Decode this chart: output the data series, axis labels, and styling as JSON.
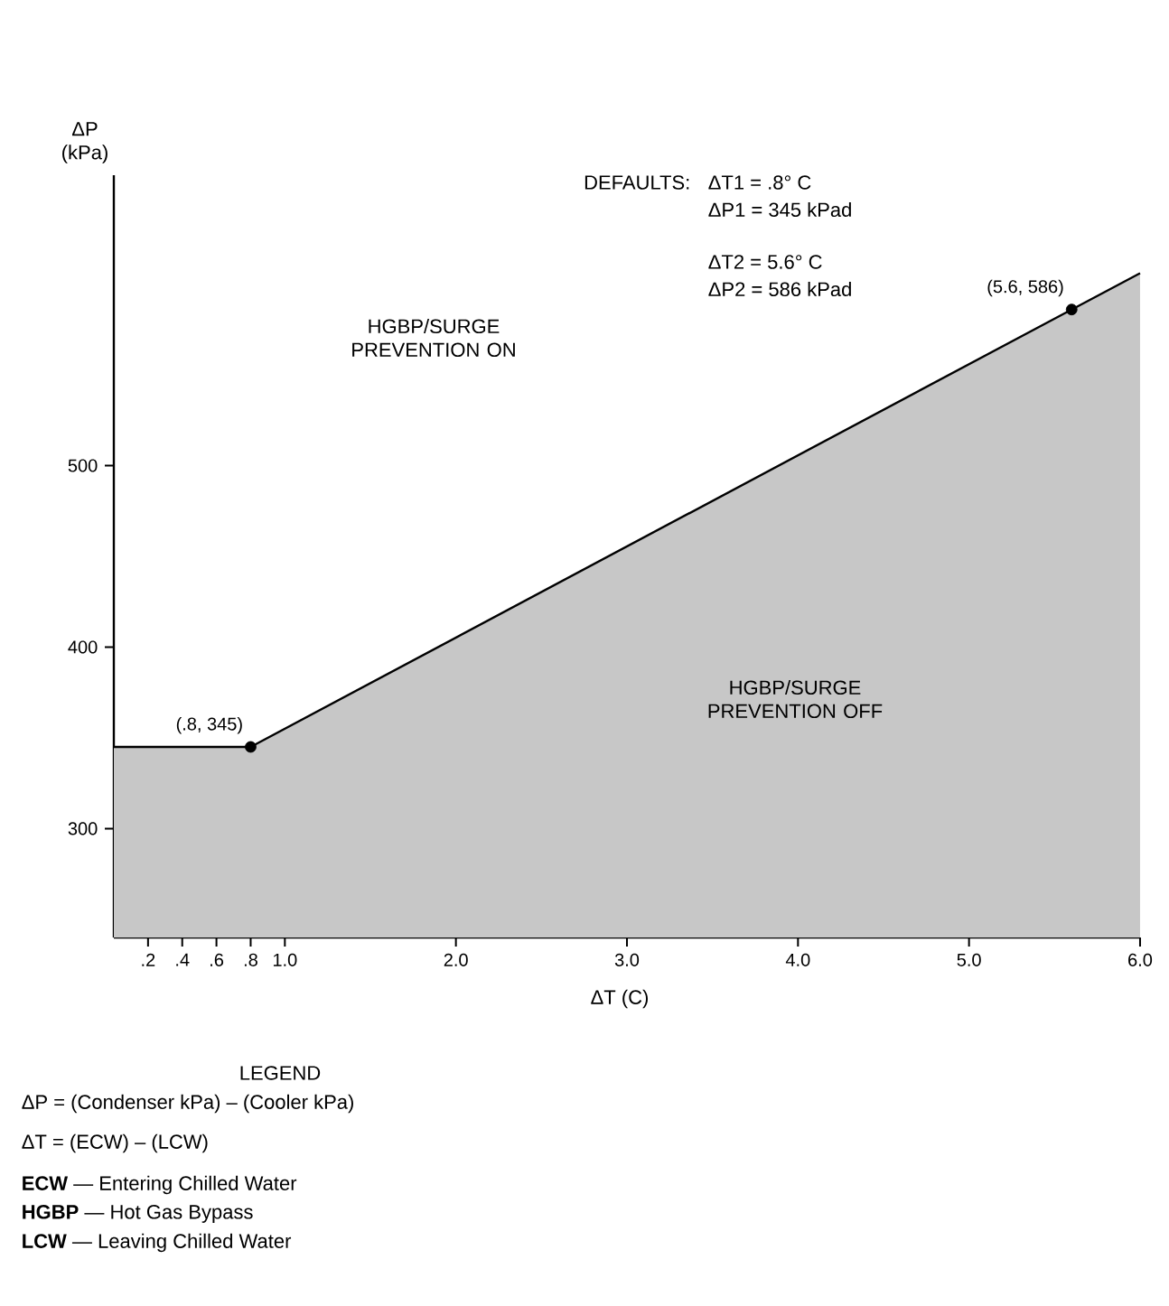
{
  "chart_data": {
    "type": "area",
    "xlabel": "ΔT (C)",
    "ylabel": "ΔP (kPa)",
    "xlim": [
      0,
      6.0
    ],
    "ylim": [
      240,
      660
    ],
    "xticks": [
      {
        "value": 0.2,
        "label": ".2"
      },
      {
        "value": 0.4,
        "label": ".4"
      },
      {
        "value": 0.6,
        "label": ".6"
      },
      {
        "value": 0.8,
        "label": ".8"
      },
      {
        "value": 1.0,
        "label": "1.0"
      },
      {
        "value": 2.0,
        "label": "2.0"
      },
      {
        "value": 3.0,
        "label": "3.0"
      },
      {
        "value": 4.0,
        "label": "4.0"
      },
      {
        "value": 5.0,
        "label": "5.0"
      },
      {
        "value": 6.0,
        "label": "6.0"
      }
    ],
    "yticks": [
      300,
      400,
      500
    ],
    "series": [
      {
        "color": "#000000",
        "x": [
          0,
          0.8,
          5.6,
          6.0
        ],
        "values": [
          345,
          345,
          586,
          606
        ]
      },
      {
        "type": "scatter",
        "color": "#000000",
        "marker": "circle",
        "x": [
          0.8,
          5.6
        ],
        "values": [
          345,
          586
        ]
      }
    ],
    "annotations": [
      {
        "text": "(.8, 345)",
        "x": 0.8,
        "y": 345
      },
      {
        "text": "(5.6, 586)",
        "x": 5.6,
        "y": 586
      },
      "HGBP/SURGE PREVENTION ON",
      "HGBP/SURGE PREVENTION OFF",
      "DEFAULTS:",
      "ΔT1 = .8° C",
      "ΔP1 = 345 kPad",
      "ΔT2 = 5.6° C",
      "ΔP2 = 586 kPad",
      "LEGEND",
      "ΔP = (Condenser kPa) – (Cooler kPa)",
      "ΔT = (ECW) – (LCW)",
      "**ECW** — Entering Chilled Water",
      "**HGBP** — Hot Gas Bypass",
      "**LCW** — Leaving Chilled Water"
    ]
  }
}
